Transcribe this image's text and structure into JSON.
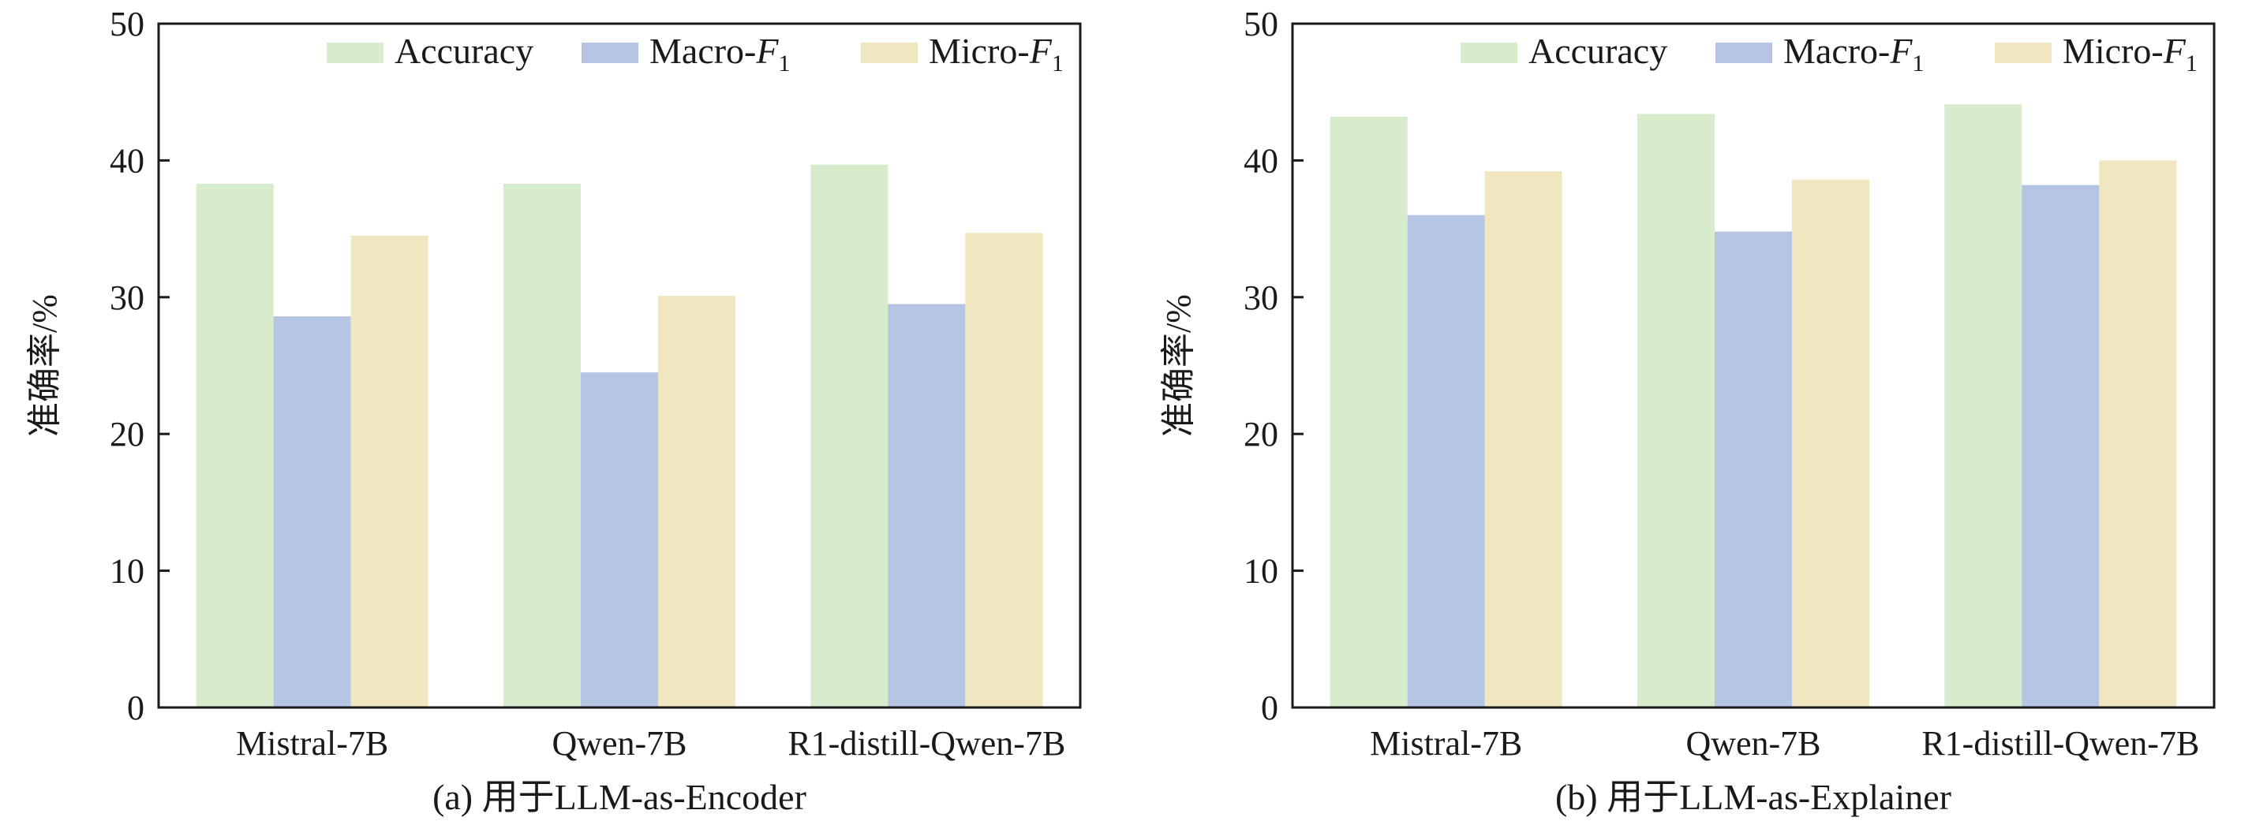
{
  "chart_data": [
    {
      "type": "bar",
      "panel_caption": "(a) 用于LLM-as-Encoder",
      "categories": [
        "Mistral-7B",
        "Qwen-7B",
        "R1-distill-Qwen-7B"
      ],
      "series": [
        {
          "name": "Accuracy",
          "name_base": "Accuracy",
          "name_sub": "",
          "color": "#d8ebcd",
          "values": [
            38.3,
            38.3,
            39.7
          ]
        },
        {
          "name": "Macro-F1",
          "name_base": "Macro-",
          "name_italic": "F",
          "name_sub": "1",
          "color": "#b5c4e2",
          "values": [
            28.6,
            24.5,
            29.5
          ]
        },
        {
          "name": "Micro-F1",
          "name_base": "Micro-",
          "name_italic": "F",
          "name_sub": "1",
          "color": "#f0e6c0",
          "values": [
            34.5,
            30.1,
            34.7
          ]
        }
      ],
      "ylabel": "准确率/%",
      "ylim": [
        0,
        50
      ],
      "yticks": [
        0,
        10,
        20,
        30,
        40,
        50
      ],
      "legend_position": "top-right",
      "grid": false
    },
    {
      "type": "bar",
      "panel_caption": "(b) 用于LLM-as-Explainer",
      "categories": [
        "Mistral-7B",
        "Qwen-7B",
        "R1-distill-Qwen-7B"
      ],
      "series": [
        {
          "name": "Accuracy",
          "name_base": "Accuracy",
          "name_sub": "",
          "color": "#d8ebcd",
          "values": [
            43.2,
            43.4,
            44.1
          ]
        },
        {
          "name": "Macro-F1",
          "name_base": "Macro-",
          "name_italic": "F",
          "name_sub": "1",
          "color": "#b5c4e2",
          "values": [
            36.0,
            34.8,
            38.2
          ]
        },
        {
          "name": "Micro-F1",
          "name_base": "Micro-",
          "name_italic": "F",
          "name_sub": "1",
          "color": "#f0e6c0",
          "values": [
            39.2,
            38.6,
            40.0
          ]
        }
      ],
      "ylabel": "准确率/%",
      "ylim": [
        0,
        50
      ],
      "yticks": [
        0,
        10,
        20,
        30,
        40,
        50
      ],
      "legend_position": "top-right",
      "grid": false
    }
  ]
}
